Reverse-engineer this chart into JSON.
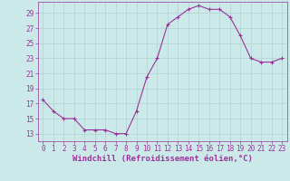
{
  "x": [
    0,
    1,
    2,
    3,
    4,
    5,
    6,
    7,
    8,
    9,
    10,
    11,
    12,
    13,
    14,
    15,
    16,
    17,
    18,
    19,
    20,
    21,
    22,
    23
  ],
  "y": [
    17.5,
    16.0,
    15.0,
    15.0,
    13.5,
    13.5,
    13.5,
    13.0,
    13.0,
    16.0,
    20.5,
    23.0,
    27.5,
    28.5,
    29.5,
    30.0,
    29.5,
    29.5,
    28.5,
    26.0,
    23.0,
    22.5,
    22.5,
    23.0
  ],
  "line_color": "#993399",
  "marker": "+",
  "marker_size": 3,
  "marker_linewidth": 0.8,
  "bg_color": "#cce9e9",
  "grid_color": "#aacccc",
  "xlabel": "Windchill (Refroidissement éolien,°C)",
  "xlabel_color": "#993399",
  "yticks": [
    13,
    15,
    17,
    19,
    21,
    23,
    25,
    27,
    29
  ],
  "xticks": [
    0,
    1,
    2,
    3,
    4,
    5,
    6,
    7,
    8,
    9,
    10,
    11,
    12,
    13,
    14,
    15,
    16,
    17,
    18,
    19,
    20,
    21,
    22,
    23
  ],
  "ylim": [
    12.0,
    30.5
  ],
  "xlim": [
    -0.5,
    23.5
  ],
  "tick_color": "#993399",
  "tick_fontsize": 5.5,
  "xlabel_fontsize": 6.5,
  "spine_color": "#993399",
  "line_width": 0.8
}
